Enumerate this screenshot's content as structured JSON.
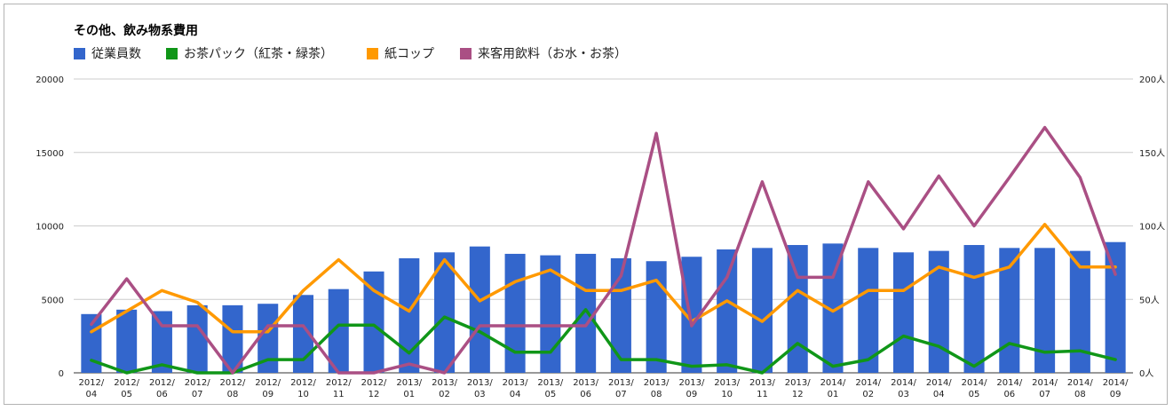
{
  "title": "その他、飲み物系費用",
  "legend": [
    {
      "label": "従業員数",
      "color": "#3366cc"
    },
    {
      "label": "お茶パック（紅茶・緑茶）",
      "color": "#109618"
    },
    {
      "label": "紙コップ",
      "color": "#ff9900"
    },
    {
      "label": "来客用飲料（お水・お茶）",
      "color": "#aa4f84"
    }
  ],
  "chart_data": {
    "type": "bar",
    "title": "その他、飲み物系費用",
    "categories": [
      "2012/04",
      "2012/05",
      "2012/06",
      "2012/07",
      "2012/08",
      "2012/09",
      "2012/10",
      "2012/11",
      "2012/12",
      "2013/01",
      "2013/02",
      "2013/03",
      "2013/04",
      "2013/05",
      "2013/06",
      "2013/07",
      "2013/08",
      "2013/09",
      "2013/10",
      "2013/11",
      "2013/12",
      "2014/01",
      "2014/02",
      "2014/03",
      "2014/04",
      "2014/05",
      "2014/06",
      "2014/07",
      "2014/08",
      "2014/09"
    ],
    "y_left": {
      "ylim": [
        0,
        20000
      ],
      "ticks": [
        "0",
        "5000",
        "10000",
        "15000",
        "20000"
      ]
    },
    "y_right": {
      "ylim": [
        0,
        200
      ],
      "ticks": [
        "0人",
        "50人",
        "100人",
        "150人",
        "200人"
      ]
    },
    "grid": true,
    "legend_position": "top-left",
    "series": [
      {
        "name": "従業員数",
        "type": "bar",
        "axis": "right",
        "color": "#3366cc",
        "values": [
          40,
          43,
          42,
          46,
          46,
          47,
          53,
          57,
          69,
          78,
          82,
          86,
          81,
          80,
          81,
          78,
          76,
          79,
          84,
          85,
          87,
          88,
          85,
          82,
          83,
          87,
          85,
          85,
          83,
          89
        ]
      },
      {
        "name": "お茶パック（紅茶・緑茶）",
        "type": "line",
        "axis": "left",
        "color": "#109618",
        "values": [
          850,
          0,
          550,
          0,
          0,
          900,
          900,
          3250,
          3250,
          1350,
          3800,
          2800,
          1400,
          1400,
          4300,
          900,
          900,
          450,
          550,
          0,
          2000,
          450,
          900,
          2500,
          1800,
          450,
          2000,
          1400,
          1500,
          900
        ]
      },
      {
        "name": "紙コップ",
        "type": "line",
        "axis": "left",
        "color": "#ff9900",
        "values": [
          2800,
          4200,
          5600,
          4800,
          2800,
          2800,
          5600,
          7700,
          5600,
          4200,
          7700,
          4900,
          6200,
          7000,
          5600,
          5600,
          6300,
          3500,
          4900,
          3500,
          5600,
          4200,
          5600,
          5600,
          7200,
          6500,
          7200,
          10100,
          7200,
          7200
        ]
      },
      {
        "name": "来客用飲料（お水・お茶）",
        "type": "line",
        "axis": "left",
        "color": "#aa4f84",
        "values": [
          3300,
          6400,
          3200,
          3200,
          0,
          3200,
          3200,
          0,
          0,
          600,
          0,
          3200,
          3200,
          3200,
          3200,
          6600,
          16300,
          3200,
          6500,
          13000,
          6500,
          6500,
          13000,
          9800,
          13400,
          10000,
          13300,
          16700,
          13300,
          6700
        ]
      }
    ]
  }
}
